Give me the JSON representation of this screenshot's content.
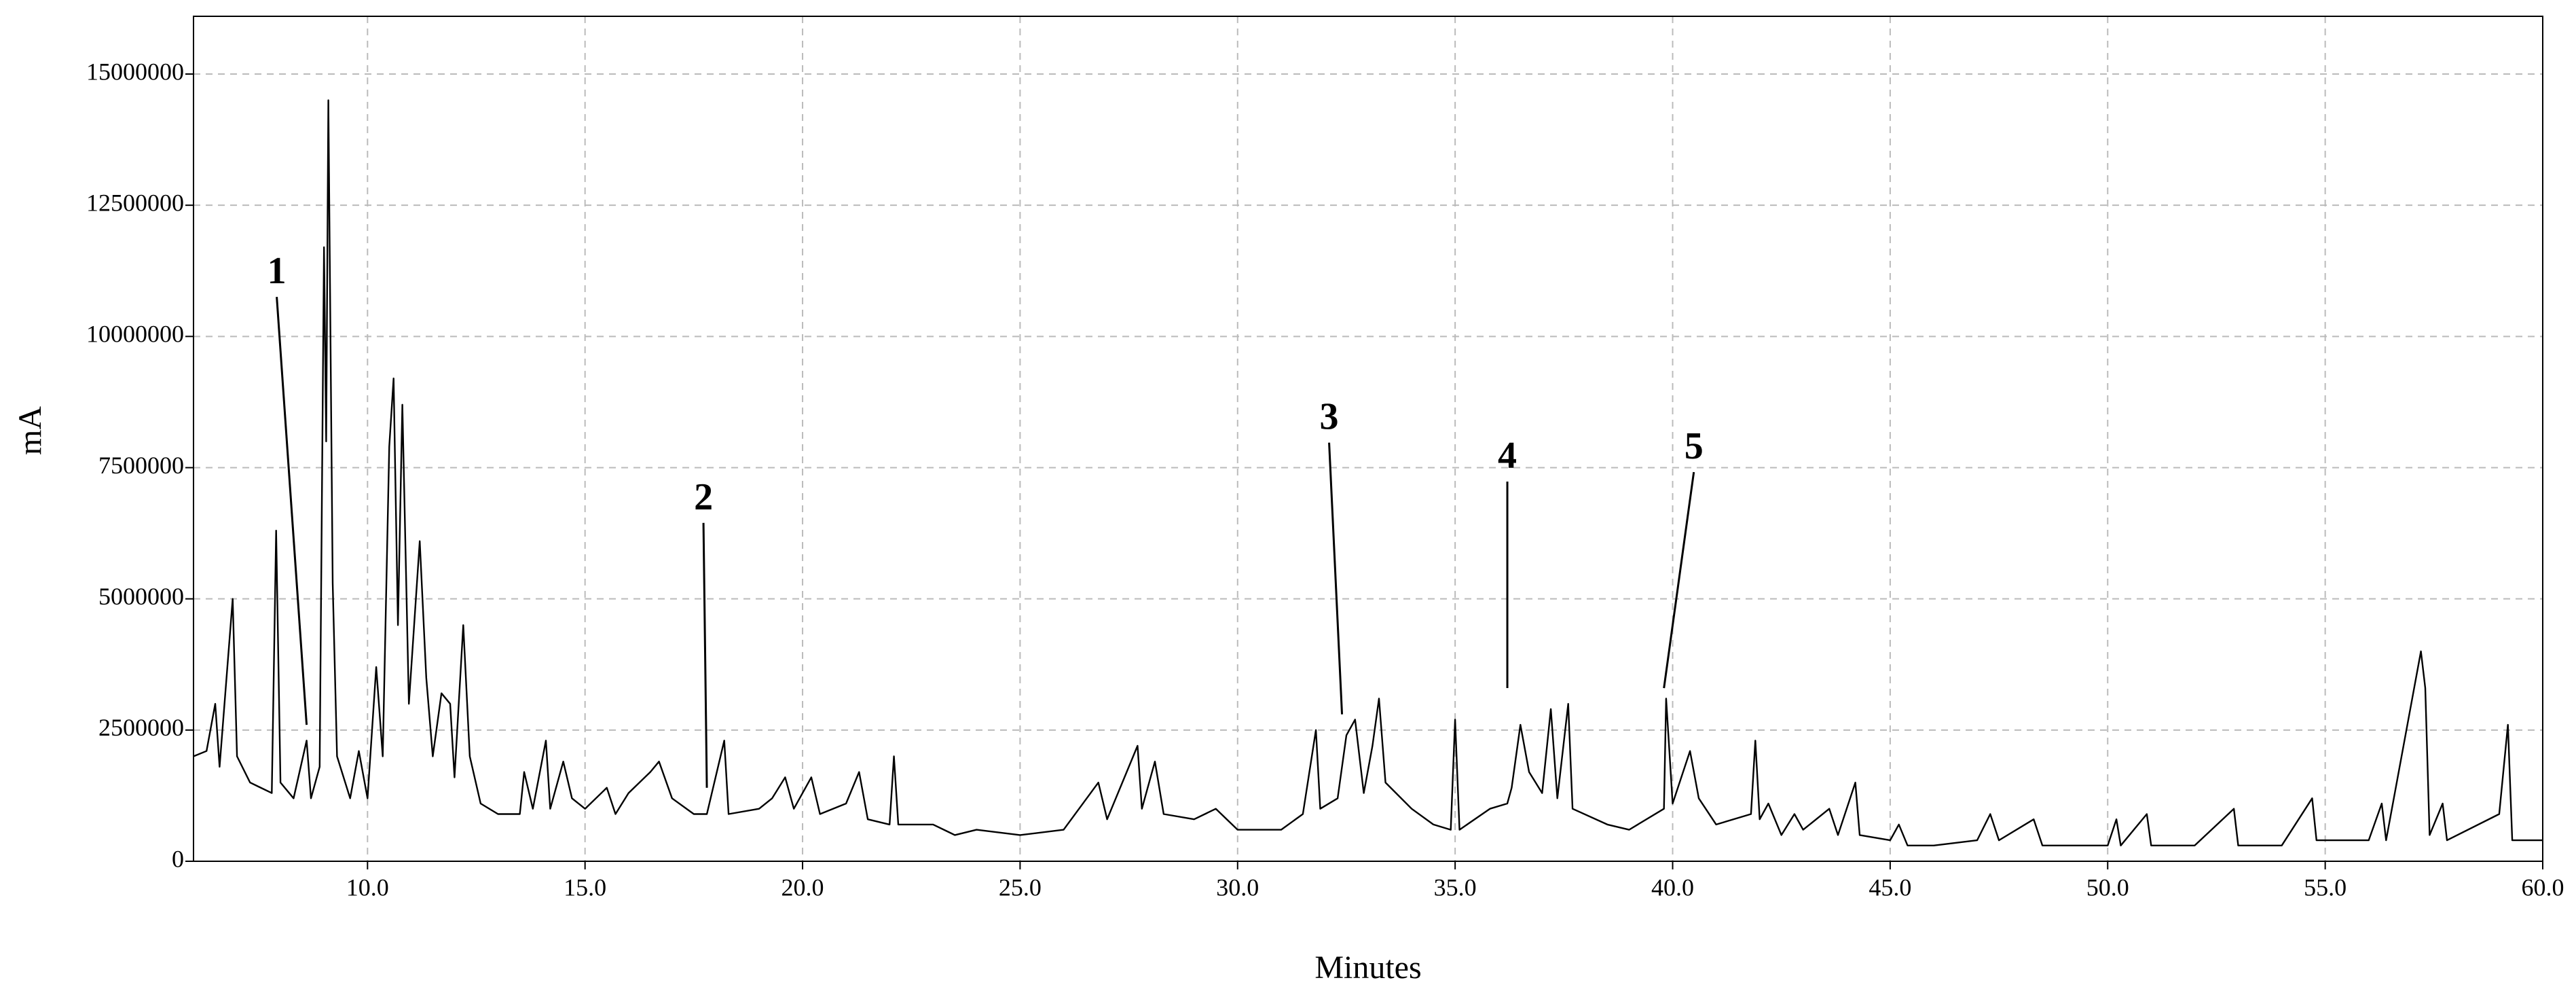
{
  "chart_data": {
    "type": "line",
    "xlabel": "Minutes",
    "ylabel": "mA",
    "color": "#000000",
    "grid": true,
    "xlim": [
      6,
      60
    ],
    "ylim": [
      0,
      16100000
    ],
    "xticks": [
      {
        "value": 10,
        "label": "10.0"
      },
      {
        "value": 15,
        "label": "15.0"
      },
      {
        "value": 20,
        "label": "20.0"
      },
      {
        "value": 25,
        "label": "25.0"
      },
      {
        "value": 30,
        "label": "30.0"
      },
      {
        "value": 35,
        "label": "35.0"
      },
      {
        "value": 40,
        "label": "40.0"
      },
      {
        "value": 45,
        "label": "45.0"
      },
      {
        "value": 50,
        "label": "50.0"
      },
      {
        "value": 55,
        "label": "55.0"
      },
      {
        "value": 60,
        "label": "60.0"
      }
    ],
    "yticks": [
      0,
      2500000,
      5000000,
      7500000,
      10000000,
      12500000,
      15000000
    ],
    "x": [
      6.0,
      6.3,
      6.5,
      6.6,
      6.9,
      7.0,
      7.3,
      7.8,
      7.9,
      8.0,
      8.3,
      8.6,
      8.7,
      8.9,
      9.0,
      9.05,
      9.1,
      9.2,
      9.3,
      9.6,
      9.8,
      10.0,
      10.2,
      10.35,
      10.5,
      10.6,
      10.7,
      10.8,
      10.95,
      11.2,
      11.35,
      11.5,
      11.7,
      11.9,
      12.0,
      12.2,
      12.35,
      12.6,
      13.0,
      13.5,
      13.6,
      13.8,
      14.1,
      14.2,
      14.5,
      14.7,
      15.0,
      15.5,
      15.7,
      16.0,
      16.5,
      16.7,
      17.0,
      17.5,
      17.8,
      18.2,
      18.3,
      19.0,
      19.3,
      19.6,
      19.8,
      20.2,
      20.4,
      21.0,
      21.3,
      21.5,
      22.0,
      22.1,
      22.2,
      23.0,
      23.5,
      24.0,
      25.0,
      26.0,
      26.8,
      27.0,
      27.7,
      27.8,
      28.1,
      28.3,
      29.0,
      29.5,
      30.0,
      31.0,
      31.5,
      31.8,
      31.9,
      32.3,
      32.5,
      32.7,
      32.9,
      33.1,
      33.25,
      33.4,
      34.0,
      34.5,
      34.9,
      35.0,
      35.1,
      35.8,
      36.2,
      36.3,
      36.5,
      36.7,
      37.0,
      37.2,
      37.35,
      37.6,
      37.7,
      38.5,
      39.0,
      39.8,
      39.85,
      40.0,
      40.4,
      40.6,
      41.0,
      41.8,
      41.9,
      42.0,
      42.2,
      42.5,
      42.8,
      43.0,
      43.6,
      43.8,
      44.2,
      44.3,
      45.0,
      45.2,
      45.4,
      46.0,
      47.0,
      47.3,
      47.5,
      48.3,
      48.5,
      50.0,
      50.2,
      50.3,
      50.9,
      51.0,
      52.0,
      52.9,
      53.0,
      54.0,
      54.7,
      54.8,
      56.0,
      56.3,
      56.4,
      57.2,
      57.3,
      57.4,
      57.7,
      57.8,
      59.0,
      59.2,
      59.3,
      60.0
    ],
    "values": [
      2000000,
      2100000,
      3000000,
      1800000,
      5000000,
      2000000,
      1500000,
      1300000,
      6300000,
      1500000,
      1200000,
      2300000,
      1200000,
      1800000,
      11700000,
      8000000,
      14500000,
      5300000,
      2000000,
      1200000,
      2100000,
      1200000,
      3700000,
      2000000,
      7900000,
      9200000,
      4500000,
      8700000,
      3000000,
      6100000,
      3500000,
      2000000,
      3200000,
      3000000,
      1600000,
      4500000,
      2000000,
      1100000,
      900000,
      900000,
      1700000,
      1000000,
      2300000,
      1000000,
      1900000,
      1200000,
      1000000,
      1400000,
      900000,
      1300000,
      1700000,
      1900000,
      1200000,
      900000,
      900000,
      2300000,
      900000,
      1000000,
      1200000,
      1600000,
      1000000,
      1600000,
      900000,
      1100000,
      1700000,
      800000,
      700000,
      2000000,
      700000,
      700000,
      500000,
      600000,
      500000,
      600000,
      1500000,
      800000,
      2200000,
      1000000,
      1900000,
      900000,
      800000,
      1000000,
      600000,
      600000,
      900000,
      2500000,
      1000000,
      1200000,
      2400000,
      2700000,
      1300000,
      2200000,
      3100000,
      1500000,
      1000000,
      700000,
      600000,
      2700000,
      600000,
      1000000,
      1100000,
      1400000,
      2600000,
      1700000,
      1300000,
      2900000,
      1200000,
      3000000,
      1000000,
      700000,
      600000,
      1000000,
      3100000,
      1100000,
      2100000,
      1200000,
      700000,
      900000,
      2300000,
      800000,
      1100000,
      500000,
      900000,
      600000,
      1000000,
      500000,
      1500000,
      500000,
      400000,
      700000,
      300000,
      300000,
      400000,
      900000,
      400000,
      800000,
      300000,
      300000,
      800000,
      300000,
      900000,
      300000,
      300000,
      1000000,
      300000,
      300000,
      1200000,
      400000,
      400000,
      1100000,
      400000,
      4000000,
      3300000,
      500000,
      1100000,
      400000,
      900000,
      2600000,
      400000,
      400000
    ],
    "annotations": [
      {
        "text": "1",
        "x": 8.6,
        "y": 2600000
      },
      {
        "text": "2",
        "x": 17.8,
        "y": 1400000
      },
      {
        "text": "3",
        "x": 32.4,
        "y": 2800000
      },
      {
        "text": "4",
        "x": 36.2,
        "y": 3300000
      },
      {
        "text": "5",
        "x": 39.8,
        "y": 3300000
      }
    ]
  }
}
